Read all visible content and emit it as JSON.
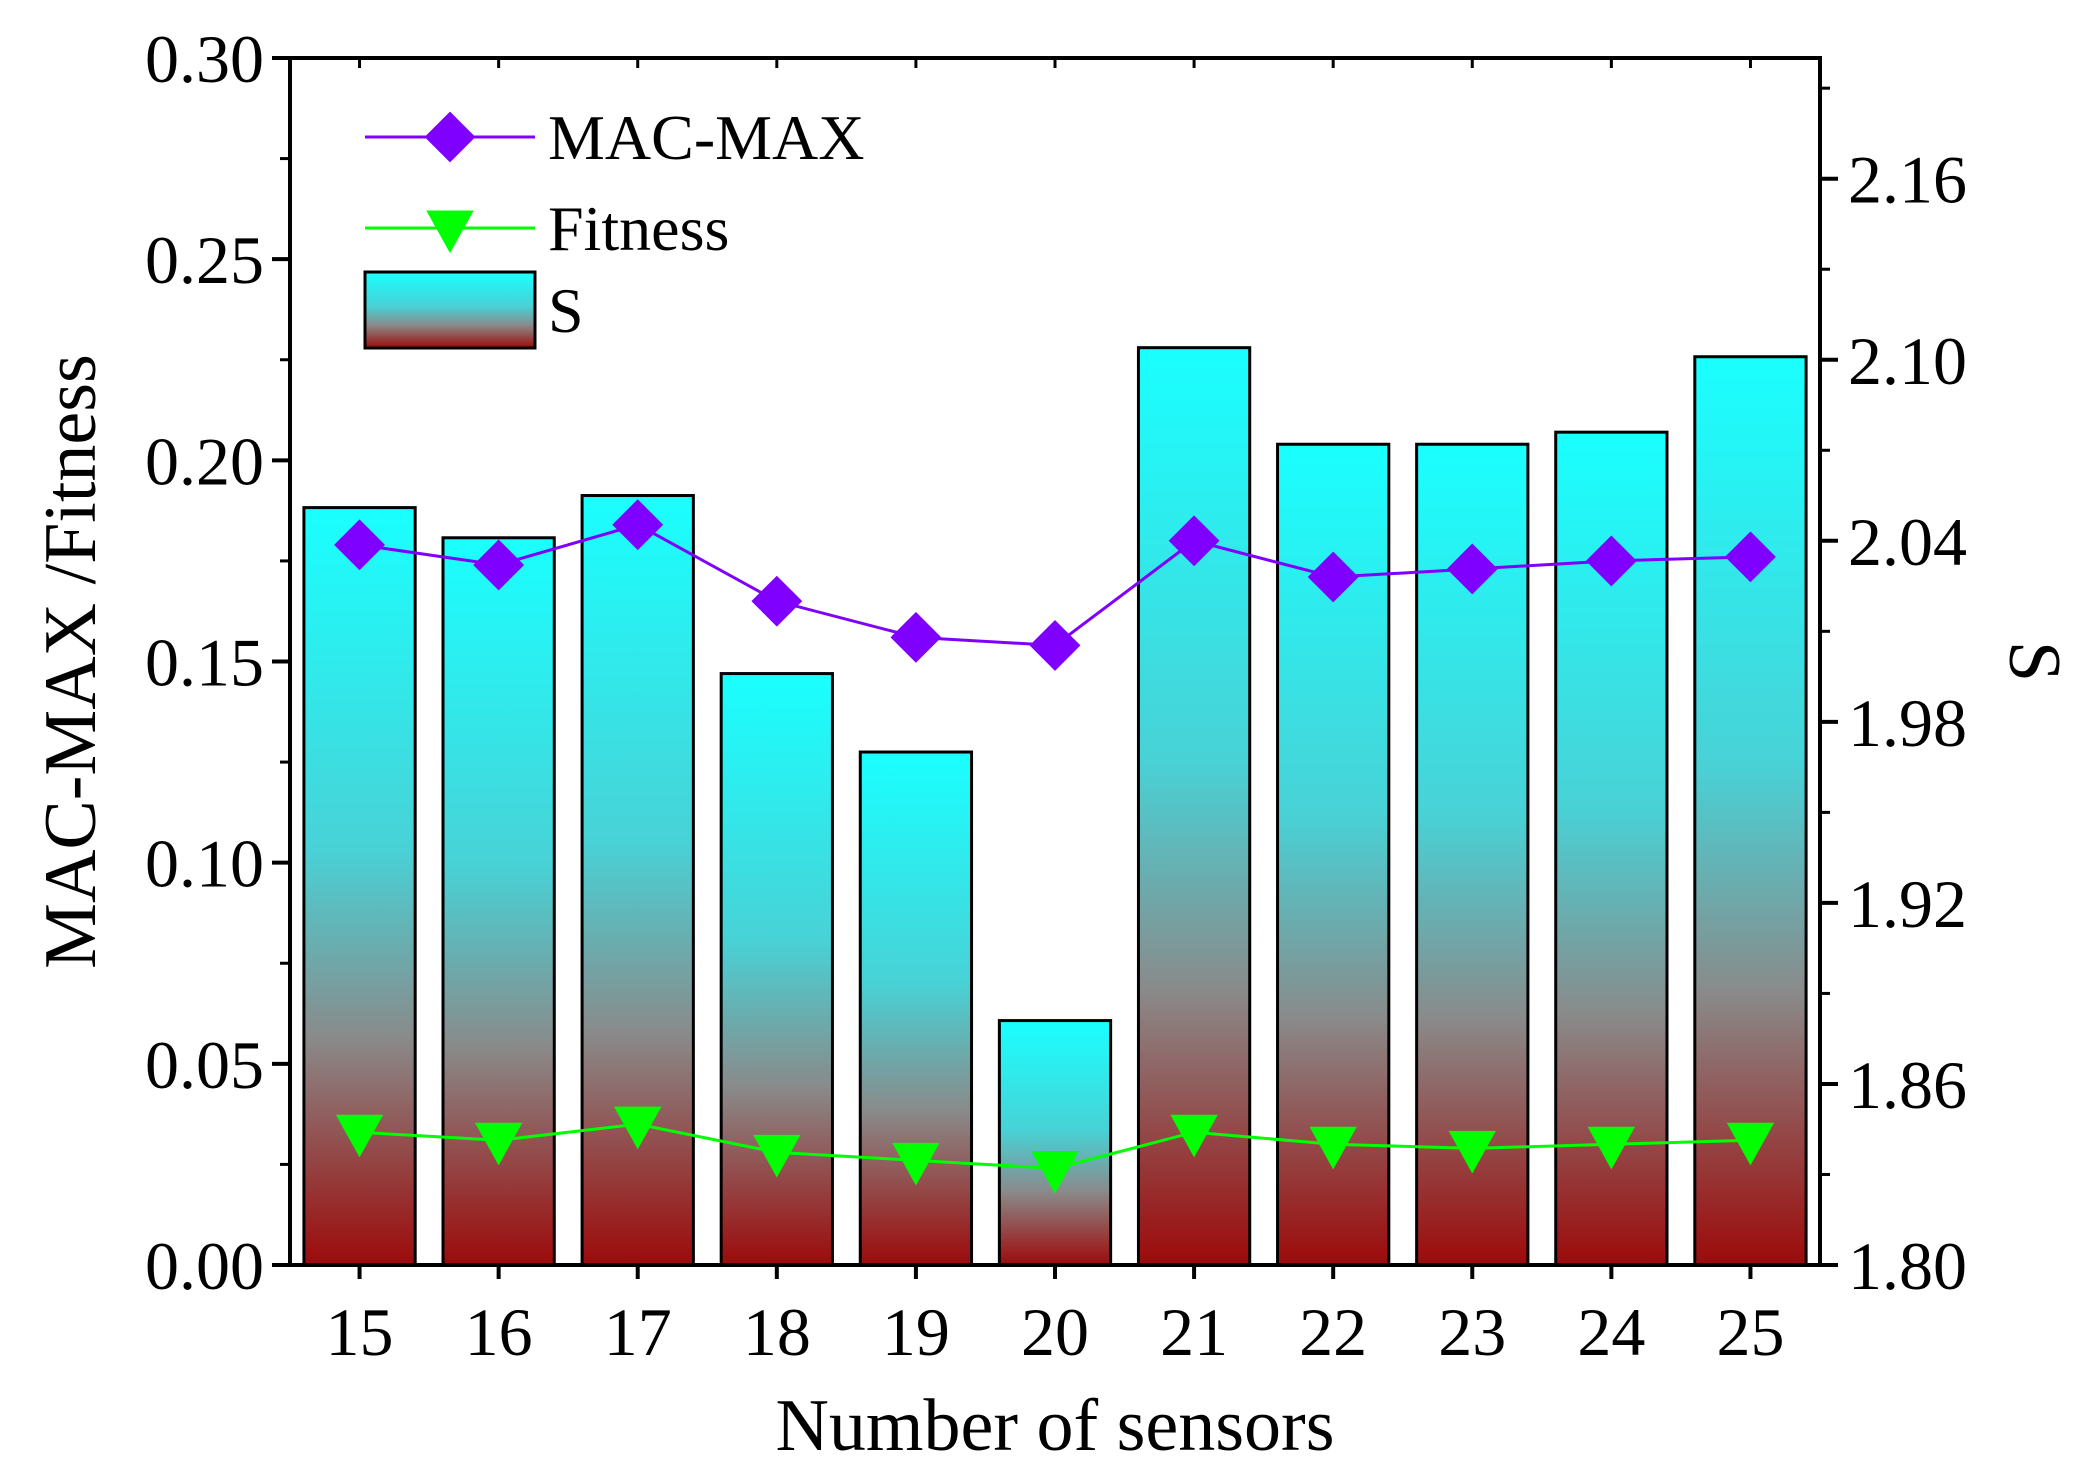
{
  "chart_data": {
    "type": "bar",
    "xlabel": "Number of sensors",
    "ylabel_left": "MAC-MAX /Fitness",
    "ylabel_right": "S",
    "categories": [
      "15",
      "16",
      "17",
      "18",
      "19",
      "20",
      "21",
      "22",
      "23",
      "24",
      "25"
    ],
    "ylim_left": [
      0,
      0.3
    ],
    "ylim_right": [
      1.8,
      2.2
    ],
    "yticks_left": [
      "0.00",
      "0.05",
      "0.10",
      "0.15",
      "0.20",
      "0.25",
      "0.30"
    ],
    "yticks_right": [
      "1.80",
      "1.86",
      "1.92",
      "1.98",
      "2.04",
      "2.10",
      "2.16"
    ],
    "bars": {
      "name": "S",
      "axis": "right",
      "values": [
        2.051,
        2.041,
        2.055,
        1.996,
        1.97,
        1.881,
        2.104,
        2.072,
        2.072,
        2.076,
        2.101
      ]
    },
    "series": [
      {
        "name": "MAC-MAX",
        "axis": "left",
        "marker": "diamond",
        "values": [
          0.179,
          0.174,
          0.184,
          0.165,
          0.156,
          0.154,
          0.18,
          0.171,
          0.173,
          0.175,
          0.176
        ]
      },
      {
        "name": "Fitness",
        "axis": "left",
        "marker": "triangle-down",
        "values": [
          0.033,
          0.031,
          0.035,
          0.028,
          0.026,
          0.024,
          0.033,
          0.03,
          0.029,
          0.03,
          0.031
        ]
      }
    ],
    "legend": [
      "MAC-MAX",
      "Fitness",
      "S"
    ],
    "legend_position": "top-left",
    "grid": false
  },
  "colors": {
    "mac_max": "#8000ff",
    "fitness": "#00ff00",
    "bar_top": "#1affff",
    "bar_bottom": "#9d0a0a"
  }
}
